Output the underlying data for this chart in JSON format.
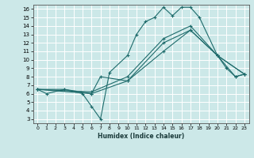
{
  "xlabel": "Humidex (Indice chaleur)",
  "bg_color": "#cce8e8",
  "line_color": "#1e6b6b",
  "grid_color": "#ffffff",
  "xlim": [
    -0.5,
    23.5
  ],
  "ylim": [
    2.5,
    16.5
  ],
  "xticks": [
    0,
    1,
    2,
    3,
    4,
    5,
    6,
    7,
    8,
    9,
    10,
    11,
    12,
    13,
    14,
    15,
    16,
    17,
    18,
    19,
    20,
    21,
    22,
    23
  ],
  "yticks": [
    3,
    4,
    5,
    6,
    7,
    8,
    9,
    10,
    11,
    12,
    13,
    14,
    15,
    16
  ],
  "lines": [
    {
      "x": [
        0,
        1,
        3,
        5,
        6,
        7,
        8,
        10,
        11,
        12,
        13,
        14,
        15,
        16,
        17,
        18,
        20,
        21,
        22,
        23
      ],
      "y": [
        6.5,
        6.0,
        6.5,
        6.0,
        4.5,
        3.0,
        8.5,
        10.5,
        13.0,
        14.5,
        15.0,
        16.2,
        15.2,
        16.2,
        16.2,
        15.0,
        10.5,
        9.0,
        8.0,
        8.3
      ]
    },
    {
      "x": [
        0,
        3,
        6,
        7,
        10,
        14,
        17,
        20,
        22,
        23
      ],
      "y": [
        6.5,
        6.5,
        6.0,
        8.0,
        7.5,
        12.0,
        13.5,
        10.5,
        8.0,
        8.3
      ]
    },
    {
      "x": [
        0,
        6,
        10,
        14,
        17,
        20,
        23
      ],
      "y": [
        6.5,
        6.0,
        7.5,
        11.0,
        13.5,
        10.5,
        8.3
      ]
    },
    {
      "x": [
        0,
        6,
        10,
        14,
        17,
        20,
        23
      ],
      "y": [
        6.5,
        6.2,
        8.0,
        12.5,
        14.0,
        10.5,
        8.3
      ]
    }
  ]
}
